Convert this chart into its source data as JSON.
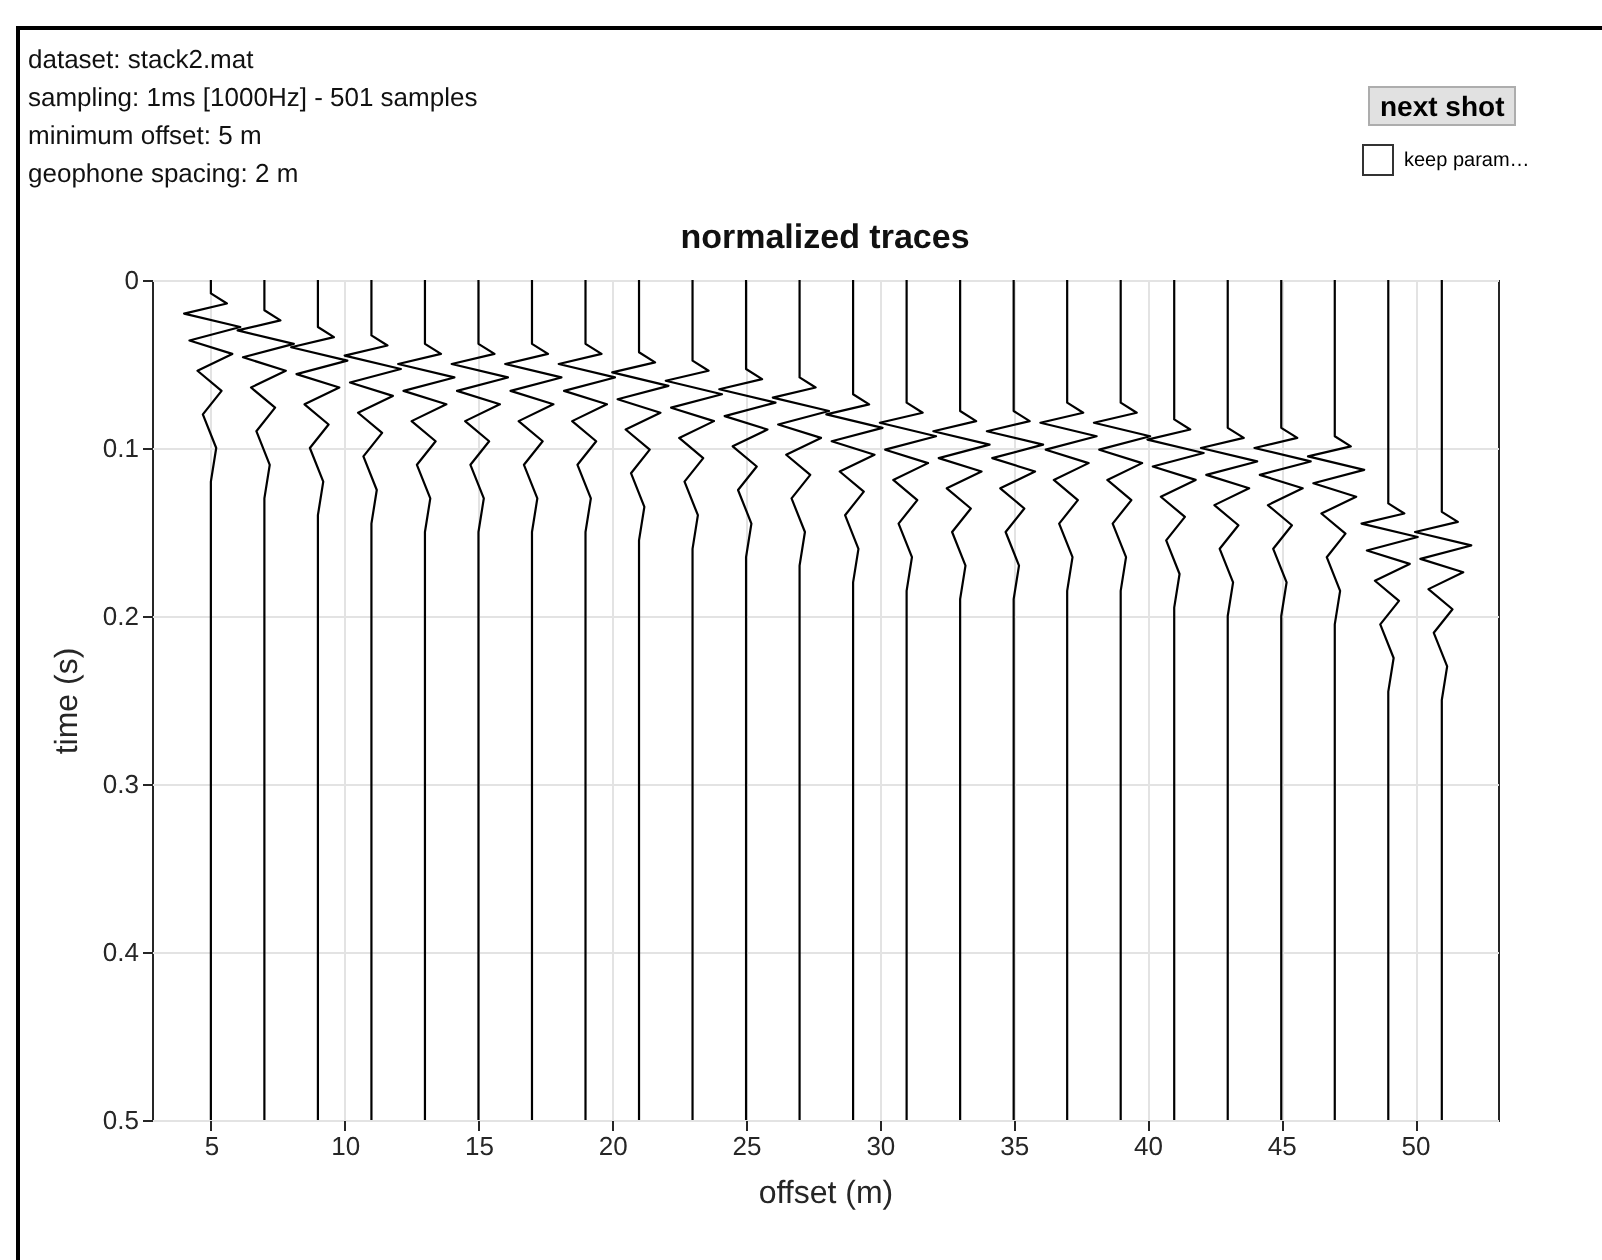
{
  "chart_data": {
    "type": "line",
    "title": "normalized traces",
    "xlabel": "offset (m)",
    "ylabel": "time (s)",
    "annotations": [
      "dataset: stack2.mat",
      "sampling: 1ms [1000Hz] - 501 samples",
      "minimum offset: 5 m",
      "geophone spacing: 2 m",
      "next shot",
      "keep param…"
    ],
    "xlim": [
      2.8,
      53.1
    ],
    "xticks": [
      5,
      10,
      15,
      20,
      25,
      30,
      35,
      40,
      45,
      50
    ],
    "ylim": [
      0.5,
      0
    ],
    "yticks": [
      0,
      0.1,
      0.2,
      0.3,
      0.4,
      0.5
    ],
    "grid": true,
    "marker": "none",
    "line_style": "solid",
    "series": [
      {
        "color": "#000000",
        "x": [
          5,
          5,
          5.6,
          4,
          6.1,
          4.2,
          5.8,
          4.5,
          5.4,
          4.7,
          5.2,
          5,
          5
        ],
        "values": [
          0,
          0.008,
          0.014,
          0.02,
          0.028,
          0.036,
          0.044,
          0.054,
          0.066,
          0.08,
          0.1,
          0.12,
          0.5
        ]
      },
      {
        "color": "#000000",
        "x": [
          7,
          7,
          7.6,
          6,
          8.1,
          6.2,
          7.8,
          6.5,
          7.4,
          6.7,
          7.2,
          7,
          7
        ],
        "values": [
          0,
          0.018,
          0.024,
          0.03,
          0.038,
          0.046,
          0.054,
          0.064,
          0.076,
          0.09,
          0.11,
          0.13,
          0.5
        ]
      },
      {
        "color": "#000000",
        "x": [
          9,
          9,
          9.6,
          8,
          10.1,
          8.2,
          9.8,
          8.5,
          9.4,
          8.7,
          9.2,
          9,
          9
        ],
        "values": [
          0,
          0.028,
          0.034,
          0.04,
          0.048,
          0.056,
          0.064,
          0.074,
          0.086,
          0.1,
          0.12,
          0.14,
          0.5
        ]
      },
      {
        "color": "#000000",
        "x": [
          11,
          11,
          11.6,
          10,
          12.1,
          10.2,
          11.8,
          10.5,
          11.4,
          10.7,
          11.2,
          11,
          11
        ],
        "values": [
          0,
          0.033,
          0.039,
          0.045,
          0.053,
          0.061,
          0.069,
          0.079,
          0.091,
          0.105,
          0.125,
          0.145,
          0.5
        ]
      },
      {
        "color": "#000000",
        "x": [
          13,
          13,
          13.6,
          12,
          14.1,
          12.2,
          13.8,
          12.5,
          13.4,
          12.7,
          13.2,
          13,
          13
        ],
        "values": [
          0,
          0.038,
          0.044,
          0.05,
          0.058,
          0.066,
          0.074,
          0.084,
          0.096,
          0.11,
          0.13,
          0.15,
          0.5
        ]
      },
      {
        "color": "#000000",
        "x": [
          15,
          15,
          15.6,
          14,
          16.1,
          14.2,
          15.8,
          14.5,
          15.4,
          14.7,
          15.2,
          15,
          15
        ],
        "values": [
          0,
          0.038,
          0.044,
          0.05,
          0.058,
          0.066,
          0.074,
          0.084,
          0.096,
          0.11,
          0.13,
          0.15,
          0.5
        ]
      },
      {
        "color": "#000000",
        "x": [
          17,
          17,
          17.6,
          16,
          18.1,
          16.2,
          17.8,
          16.5,
          17.4,
          16.7,
          17.2,
          17,
          17
        ],
        "values": [
          0,
          0.038,
          0.044,
          0.05,
          0.058,
          0.066,
          0.074,
          0.084,
          0.096,
          0.11,
          0.13,
          0.15,
          0.5
        ]
      },
      {
        "color": "#000000",
        "x": [
          19,
          19,
          19.6,
          18,
          20.1,
          18.2,
          19.8,
          18.5,
          19.4,
          18.7,
          19.2,
          19,
          19
        ],
        "values": [
          0,
          0.038,
          0.044,
          0.05,
          0.058,
          0.066,
          0.074,
          0.084,
          0.096,
          0.11,
          0.13,
          0.15,
          0.5
        ]
      },
      {
        "color": "#000000",
        "x": [
          21,
          21,
          21.6,
          20,
          22.1,
          20.2,
          21.8,
          20.5,
          21.4,
          20.7,
          21.2,
          21,
          21
        ],
        "values": [
          0,
          0.043,
          0.049,
          0.055,
          0.063,
          0.071,
          0.079,
          0.089,
          0.101,
          0.115,
          0.135,
          0.155,
          0.5
        ]
      },
      {
        "color": "#000000",
        "x": [
          23,
          23,
          23.6,
          22,
          24.1,
          22.2,
          23.8,
          22.5,
          23.4,
          22.7,
          23.2,
          23,
          23
        ],
        "values": [
          0,
          0.048,
          0.054,
          0.06,
          0.068,
          0.076,
          0.084,
          0.094,
          0.106,
          0.12,
          0.14,
          0.16,
          0.5
        ]
      },
      {
        "color": "#000000",
        "x": [
          25,
          25,
          25.6,
          24,
          26.1,
          24.2,
          25.8,
          24.5,
          25.4,
          24.7,
          25.2,
          25,
          25
        ],
        "values": [
          0,
          0.053,
          0.059,
          0.065,
          0.073,
          0.081,
          0.089,
          0.099,
          0.111,
          0.125,
          0.145,
          0.165,
          0.5
        ]
      },
      {
        "color": "#000000",
        "x": [
          27,
          27,
          27.6,
          26,
          28.1,
          26.2,
          27.8,
          26.5,
          27.4,
          26.7,
          27.2,
          27,
          27
        ],
        "values": [
          0,
          0.058,
          0.064,
          0.07,
          0.078,
          0.086,
          0.094,
          0.104,
          0.116,
          0.13,
          0.15,
          0.17,
          0.5
        ]
      },
      {
        "color": "#000000",
        "x": [
          29,
          29,
          29.6,
          28,
          30.1,
          28.2,
          29.8,
          28.5,
          29.4,
          28.7,
          29.2,
          29,
          29
        ],
        "values": [
          0,
          0.068,
          0.074,
          0.08,
          0.088,
          0.096,
          0.104,
          0.114,
          0.126,
          0.14,
          0.16,
          0.18,
          0.5
        ]
      },
      {
        "color": "#000000",
        "x": [
          31,
          31,
          31.6,
          30,
          32.1,
          30.2,
          31.8,
          30.5,
          31.4,
          30.7,
          31.2,
          31,
          31
        ],
        "values": [
          0,
          0.073,
          0.079,
          0.085,
          0.093,
          0.101,
          0.109,
          0.119,
          0.131,
          0.145,
          0.165,
          0.185,
          0.5
        ]
      },
      {
        "color": "#000000",
        "x": [
          33,
          33,
          33.6,
          32,
          34.1,
          32.2,
          33.8,
          32.5,
          33.4,
          32.7,
          33.2,
          33,
          33
        ],
        "values": [
          0,
          0.078,
          0.084,
          0.09,
          0.098,
          0.106,
          0.114,
          0.124,
          0.136,
          0.15,
          0.17,
          0.19,
          0.5
        ]
      },
      {
        "color": "#000000",
        "x": [
          35,
          35,
          35.6,
          34,
          36.1,
          34.2,
          35.8,
          34.5,
          35.4,
          34.7,
          35.2,
          35,
          35
        ],
        "values": [
          0,
          0.078,
          0.084,
          0.09,
          0.098,
          0.106,
          0.114,
          0.124,
          0.136,
          0.15,
          0.17,
          0.19,
          0.5
        ]
      },
      {
        "color": "#000000",
        "x": [
          37,
          37,
          37.6,
          36,
          38.1,
          36.2,
          37.8,
          36.5,
          37.4,
          36.7,
          37.2,
          37,
          37
        ],
        "values": [
          0,
          0.073,
          0.079,
          0.085,
          0.093,
          0.101,
          0.109,
          0.119,
          0.131,
          0.145,
          0.165,
          0.185,
          0.5
        ]
      },
      {
        "color": "#000000",
        "x": [
          39,
          39,
          39.6,
          38,
          40.1,
          38.2,
          39.8,
          38.5,
          39.4,
          38.7,
          39.2,
          39,
          39
        ],
        "values": [
          0,
          0.073,
          0.079,
          0.085,
          0.093,
          0.101,
          0.109,
          0.119,
          0.131,
          0.145,
          0.165,
          0.185,
          0.5
        ]
      },
      {
        "color": "#000000",
        "x": [
          41,
          41,
          41.6,
          40,
          42.1,
          40.2,
          41.8,
          40.5,
          41.4,
          40.7,
          41.2,
          41,
          41
        ],
        "values": [
          0,
          0.083,
          0.089,
          0.095,
          0.103,
          0.111,
          0.119,
          0.129,
          0.141,
          0.155,
          0.175,
          0.195,
          0.5
        ]
      },
      {
        "color": "#000000",
        "x": [
          43,
          43,
          43.6,
          42,
          44.1,
          42.2,
          43.8,
          42.5,
          43.4,
          42.7,
          43.2,
          43,
          43
        ],
        "values": [
          0,
          0.088,
          0.094,
          0.1,
          0.108,
          0.116,
          0.124,
          0.134,
          0.146,
          0.16,
          0.18,
          0.2,
          0.5
        ]
      },
      {
        "color": "#000000",
        "x": [
          45,
          45,
          45.6,
          44,
          46.1,
          44.2,
          45.8,
          44.5,
          45.4,
          44.7,
          45.2,
          45,
          45
        ],
        "values": [
          0,
          0.088,
          0.094,
          0.1,
          0.108,
          0.116,
          0.124,
          0.134,
          0.146,
          0.16,
          0.18,
          0.2,
          0.5
        ]
      },
      {
        "color": "#000000",
        "x": [
          47,
          47,
          47.6,
          46,
          48.1,
          46.2,
          47.8,
          46.5,
          47.4,
          46.7,
          47.2,
          47,
          47
        ],
        "values": [
          0,
          0.093,
          0.099,
          0.105,
          0.113,
          0.121,
          0.129,
          0.139,
          0.151,
          0.165,
          0.185,
          0.205,
          0.5
        ]
      },
      {
        "color": "#000000",
        "x": [
          49,
          49,
          49.6,
          48,
          50.1,
          48.2,
          49.8,
          48.5,
          49.4,
          48.7,
          49.2,
          49,
          49
        ],
        "values": [
          0,
          0.133,
          0.139,
          0.145,
          0.153,
          0.161,
          0.169,
          0.179,
          0.191,
          0.205,
          0.225,
          0.245,
          0.5
        ]
      },
      {
        "color": "#000000",
        "x": [
          51,
          51,
          51.6,
          50,
          52.1,
          50.2,
          51.8,
          50.5,
          51.4,
          50.7,
          51.2,
          51,
          51
        ],
        "values": [
          0,
          0.138,
          0.144,
          0.15,
          0.158,
          0.166,
          0.174,
          0.184,
          0.196,
          0.21,
          0.23,
          0.25,
          0.5
        ]
      }
    ]
  }
}
